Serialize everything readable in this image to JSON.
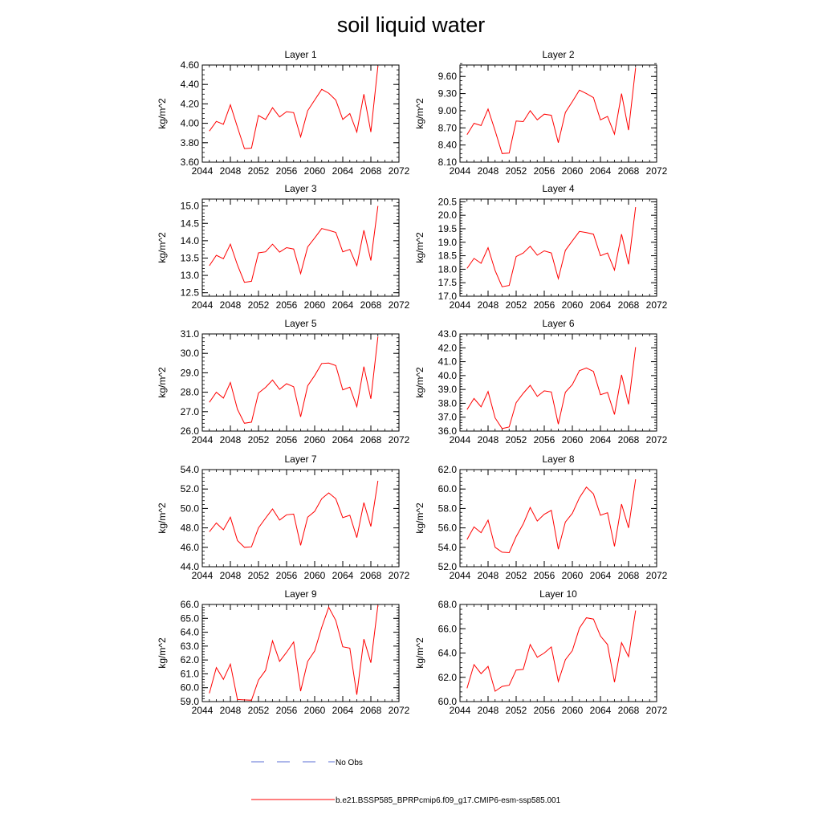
{
  "title": "soil liquid water",
  "legend": {
    "obs_label": "No Obs",
    "obs_color": "#5b6fd6",
    "model_label": "b.e21.BSSP585_BPRPcmip6.f09_g17.CMIP6-esm-ssp585.001",
    "model_color": "#ff0000"
  },
  "chart_data": [
    {
      "type": "line",
      "title": "Layer 1",
      "xlabel": "",
      "ylabel": "kg/m^2",
      "xlim": [
        2044,
        2072
      ],
      "ylim": [
        3.6,
        4.6
      ],
      "xticks": [
        2044,
        2048,
        2052,
        2056,
        2060,
        2064,
        2068,
        2072
      ],
      "yticks": [
        "3.60",
        "3.80",
        "4.00",
        "4.20",
        "4.40",
        "4.60"
      ],
      "xminor": 1,
      "yminor": 0.05,
      "x": [
        2045,
        2046,
        2047,
        2048,
        2049,
        2050,
        2051,
        2052,
        2053,
        2054,
        2055,
        2056,
        2057,
        2058,
        2059,
        2060,
        2061,
        2062,
        2063,
        2064,
        2065,
        2066,
        2067,
        2068,
        2069
      ],
      "values": [
        3.92,
        4.02,
        3.99,
        4.19,
        3.96,
        3.74,
        3.745,
        4.08,
        4.04,
        4.16,
        4.065,
        4.12,
        4.11,
        3.86,
        4.13,
        4.24,
        4.35,
        4.31,
        4.24,
        4.04,
        4.1,
        3.91,
        4.3,
        3.91,
        4.59
      ]
    },
    {
      "type": "line",
      "title": "Layer 2",
      "xlabel": "",
      "ylabel": "kg/m^2",
      "xlim": [
        2044,
        2072
      ],
      "ylim": [
        8.1,
        9.8
      ],
      "xticks": [
        2044,
        2048,
        2052,
        2056,
        2060,
        2064,
        2068,
        2072
      ],
      "yticks": [
        "8.10",
        "8.40",
        "8.70",
        "9.00",
        "9.30",
        "9.60"
      ],
      "xminor": 1,
      "yminor": 0.075,
      "x": [
        2045,
        2046,
        2047,
        2048,
        2049,
        2050,
        2051,
        2052,
        2053,
        2054,
        2055,
        2056,
        2057,
        2058,
        2059,
        2060,
        2061,
        2062,
        2063,
        2064,
        2065,
        2066,
        2067,
        2068,
        2069
      ],
      "values": [
        8.58,
        8.78,
        8.74,
        9.03,
        8.65,
        8.25,
        8.26,
        8.82,
        8.81,
        9.0,
        8.84,
        8.94,
        8.92,
        8.44,
        8.97,
        9.16,
        9.36,
        9.3,
        9.23,
        8.84,
        8.9,
        8.59,
        9.3,
        8.66,
        9.75
      ]
    },
    {
      "type": "line",
      "title": "Layer 3",
      "xlabel": "",
      "ylabel": "kg/m^2",
      "xlim": [
        2044,
        2072
      ],
      "ylim": [
        12.4,
        15.2
      ],
      "xticks": [
        2044,
        2048,
        2052,
        2056,
        2060,
        2064,
        2068,
        2072
      ],
      "yticks": [
        "12.5",
        "13.0",
        "13.5",
        "14.0",
        "14.5",
        "15.0"
      ],
      "xminor": 1,
      "yminor": 0.1,
      "x": [
        2045,
        2046,
        2047,
        2048,
        2049,
        2050,
        2051,
        2052,
        2053,
        2054,
        2055,
        2056,
        2057,
        2058,
        2059,
        2060,
        2061,
        2062,
        2063,
        2064,
        2065,
        2066,
        2067,
        2068,
        2069
      ],
      "values": [
        13.28,
        13.58,
        13.48,
        13.9,
        13.3,
        12.8,
        12.83,
        13.65,
        13.68,
        13.9,
        13.67,
        13.8,
        13.76,
        13.05,
        13.82,
        14.08,
        14.35,
        14.3,
        14.24,
        13.68,
        13.75,
        13.28,
        14.3,
        13.43,
        15.0
      ]
    },
    {
      "type": "line",
      "title": "Layer 4",
      "xlabel": "",
      "ylabel": "kg/m^2",
      "xlim": [
        2044,
        2072
      ],
      "ylim": [
        17.0,
        20.6
      ],
      "xticks": [
        2044,
        2048,
        2052,
        2056,
        2060,
        2064,
        2068,
        2072
      ],
      "yticks": [
        "17.0",
        "17.5",
        "18.0",
        "18.5",
        "19.0",
        "19.5",
        "20.0",
        "20.5"
      ],
      "xminor": 1,
      "yminor": 0.1,
      "x": [
        2045,
        2046,
        2047,
        2048,
        2049,
        2050,
        2051,
        2052,
        2053,
        2054,
        2055,
        2056,
        2057,
        2058,
        2059,
        2060,
        2061,
        2062,
        2063,
        2064,
        2065,
        2066,
        2067,
        2068,
        2069
      ],
      "values": [
        18.03,
        18.4,
        18.22,
        18.8,
        17.95,
        17.35,
        17.4,
        18.47,
        18.6,
        18.85,
        18.52,
        18.68,
        18.6,
        17.65,
        18.7,
        19.05,
        19.4,
        19.36,
        19.3,
        18.5,
        18.6,
        17.97,
        19.3,
        18.18,
        20.3
      ]
    },
    {
      "type": "line",
      "title": "Layer 5",
      "xlabel": "",
      "ylabel": "kg/m^2",
      "xlim": [
        2044,
        2072
      ],
      "ylim": [
        26.0,
        31.0
      ],
      "xticks": [
        2044,
        2048,
        2052,
        2056,
        2060,
        2064,
        2068,
        2072
      ],
      "yticks": [
        "26.0",
        "27.0",
        "28.0",
        "29.0",
        "30.0",
        "31.0"
      ],
      "xminor": 1,
      "yminor": 0.2,
      "x": [
        2045,
        2046,
        2047,
        2048,
        2049,
        2050,
        2051,
        2052,
        2053,
        2054,
        2055,
        2056,
        2057,
        2058,
        2059,
        2060,
        2061,
        2062,
        2063,
        2064,
        2065,
        2066,
        2067,
        2068,
        2069
      ],
      "values": [
        27.48,
        28.0,
        27.7,
        28.5,
        27.12,
        26.4,
        26.46,
        27.96,
        28.25,
        28.63,
        28.15,
        28.44,
        28.28,
        26.73,
        28.33,
        28.86,
        29.48,
        29.5,
        29.37,
        28.12,
        28.26,
        27.26,
        29.32,
        27.66,
        30.86
      ]
    },
    {
      "type": "line",
      "title": "Layer 6",
      "xlabel": "",
      "ylabel": "kg/m^2",
      "xlim": [
        2044,
        2072
      ],
      "ylim": [
        36.0,
        43.0
      ],
      "xticks": [
        2044,
        2048,
        2052,
        2056,
        2060,
        2064,
        2068,
        2072
      ],
      "yticks": [
        "36.0",
        "37.0",
        "38.0",
        "39.0",
        "40.0",
        "41.0",
        "42.0",
        "43.0"
      ],
      "xminor": 1,
      "yminor": 0.2,
      "x": [
        2045,
        2046,
        2047,
        2048,
        2049,
        2050,
        2051,
        2052,
        2053,
        2054,
        2055,
        2056,
        2057,
        2058,
        2059,
        2060,
        2061,
        2062,
        2063,
        2064,
        2065,
        2066,
        2067,
        2068,
        2069
      ],
      "values": [
        37.55,
        38.35,
        37.75,
        38.85,
        36.95,
        36.18,
        36.3,
        38.05,
        38.72,
        39.3,
        38.5,
        38.9,
        38.82,
        36.5,
        38.8,
        39.35,
        40.35,
        40.55,
        40.3,
        38.62,
        38.78,
        37.2,
        40.05,
        37.93,
        42.05
      ]
    },
    {
      "type": "line",
      "title": "Layer 7",
      "xlabel": "",
      "ylabel": "kg/m^2",
      "xlim": [
        2044,
        2072
      ],
      "ylim": [
        44.0,
        54.0
      ],
      "xticks": [
        2044,
        2048,
        2052,
        2056,
        2060,
        2064,
        2068,
        2072
      ],
      "yticks": [
        "44.0",
        "46.0",
        "48.0",
        "50.0",
        "52.0",
        "54.0"
      ],
      "xminor": 1,
      "yminor": 0.4,
      "x": [
        2045,
        2046,
        2047,
        2048,
        2049,
        2050,
        2051,
        2052,
        2053,
        2054,
        2055,
        2056,
        2057,
        2058,
        2059,
        2060,
        2061,
        2062,
        2063,
        2064,
        2065,
        2066,
        2067,
        2068,
        2069
      ],
      "values": [
        47.6,
        48.5,
        47.8,
        49.1,
        46.7,
        46.0,
        46.05,
        48.0,
        49.0,
        49.95,
        48.8,
        49.35,
        49.42,
        46.2,
        49.1,
        49.7,
        51.0,
        51.6,
        51.0,
        49.05,
        49.3,
        47.0,
        50.6,
        48.15,
        52.85
      ]
    },
    {
      "type": "line",
      "title": "Layer 8",
      "xlabel": "",
      "ylabel": "kg/m^2",
      "xlim": [
        2044,
        2072
      ],
      "ylim": [
        52.0,
        62.0
      ],
      "xticks": [
        2044,
        2048,
        2052,
        2056,
        2060,
        2064,
        2068,
        2072
      ],
      "yticks": [
        "52.0",
        "54.0",
        "56.0",
        "58.0",
        "60.0",
        "62.0"
      ],
      "xminor": 1,
      "yminor": 0.4,
      "x": [
        2045,
        2046,
        2047,
        2048,
        2049,
        2050,
        2051,
        2052,
        2053,
        2054,
        2055,
        2056,
        2057,
        2058,
        2059,
        2060,
        2061,
        2062,
        2063,
        2064,
        2065,
        2066,
        2067,
        2068,
        2069
      ],
      "values": [
        54.8,
        56.1,
        55.5,
        56.8,
        54.0,
        53.5,
        53.45,
        55.1,
        56.4,
        58.1,
        56.7,
        57.4,
        57.8,
        53.8,
        56.6,
        57.5,
        59.1,
        60.2,
        59.5,
        57.3,
        57.55,
        54.1,
        58.45,
        56.0,
        61.0
      ]
    },
    {
      "type": "line",
      "title": "Layer 9",
      "xlabel": "",
      "ylabel": "kg/m^2",
      "xlim": [
        2044,
        2072
      ],
      "ylim": [
        59.0,
        66.0
      ],
      "xticks": [
        2044,
        2048,
        2052,
        2056,
        2060,
        2064,
        2068,
        2072
      ],
      "yticks": [
        "59.0",
        "60.0",
        "61.0",
        "62.0",
        "63.0",
        "64.0",
        "65.0",
        "66.0"
      ],
      "xminor": 1,
      "yminor": 0.2,
      "x": [
        2045,
        2046,
        2047,
        2048,
        2049,
        2050,
        2051,
        2052,
        2053,
        2054,
        2055,
        2056,
        2057,
        2058,
        2059,
        2060,
        2061,
        2062,
        2063,
        2064,
        2065,
        2066,
        2067,
        2068,
        2069
      ],
      "values": [
        59.6,
        61.45,
        60.6,
        61.7,
        59.15,
        59.12,
        59.1,
        60.55,
        61.25,
        63.38,
        61.9,
        62.55,
        63.3,
        59.75,
        61.9,
        62.65,
        64.35,
        65.8,
        64.85,
        62.95,
        62.85,
        59.5,
        63.5,
        61.8,
        65.95
      ]
    },
    {
      "type": "line",
      "title": "Layer 10",
      "xlabel": "",
      "ylabel": "kg/m^2",
      "xlim": [
        2044,
        2072
      ],
      "ylim": [
        60.0,
        68.0
      ],
      "xticks": [
        2044,
        2048,
        2052,
        2056,
        2060,
        2064,
        2068,
        2072
      ],
      "yticks": [
        "60.0",
        "62.0",
        "64.0",
        "66.0",
        "68.0"
      ],
      "xminor": 1,
      "yminor": 0.4,
      "x": [
        2045,
        2046,
        2047,
        2048,
        2049,
        2050,
        2051,
        2052,
        2053,
        2054,
        2055,
        2056,
        2057,
        2058,
        2059,
        2060,
        2061,
        2062,
        2063,
        2064,
        2065,
        2066,
        2067,
        2068,
        2069
      ],
      "values": [
        61.1,
        63.05,
        62.3,
        62.9,
        60.85,
        61.25,
        61.35,
        62.6,
        62.65,
        64.7,
        63.65,
        64.0,
        64.5,
        61.65,
        63.45,
        64.2,
        66.05,
        66.9,
        66.8,
        65.4,
        64.7,
        61.6,
        64.85,
        63.7,
        67.5
      ]
    }
  ]
}
